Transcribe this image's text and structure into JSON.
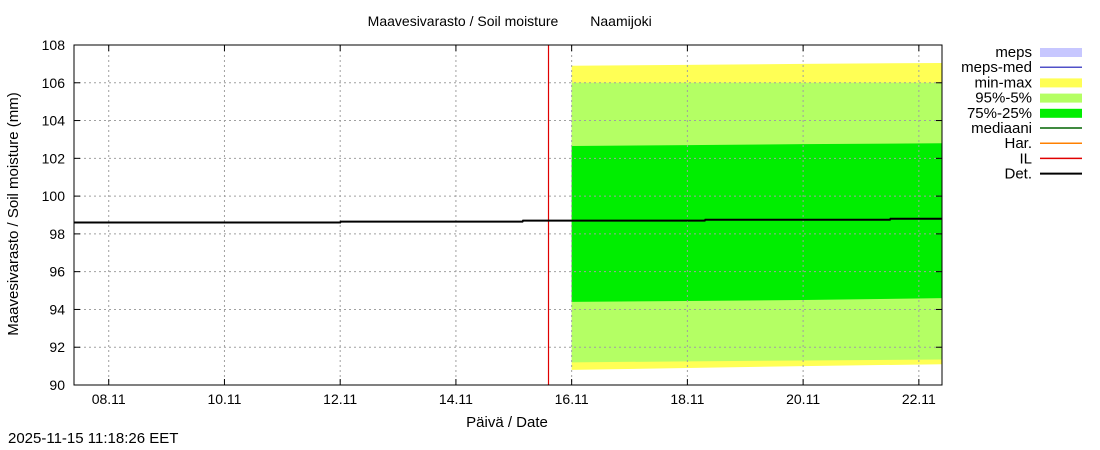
{
  "chart_data": {
    "type": "area",
    "title_left": "Maavesivarasto / Soil moisture",
    "title_right": "Naamijoki",
    "xlabel": "Päivä / Date",
    "ylabel": "Maavesivarasto / Soil moisture (mm)",
    "ylim": [
      90,
      108
    ],
    "y_ticks": [
      "90",
      "92",
      "94",
      "96",
      "98",
      "100",
      "102",
      "104",
      "106",
      "108"
    ],
    "xlim_days": [
      7.4,
      22.4
    ],
    "x_ticks": [
      {
        "label": "08.11",
        "day": 8
      },
      {
        "label": "10.11",
        "day": 10
      },
      {
        "label": "12.11",
        "day": 12
      },
      {
        "label": "14.11",
        "day": 14
      },
      {
        "label": "16.11",
        "day": 16
      },
      {
        "label": "18.11",
        "day": 18
      },
      {
        "label": "20.11",
        "day": 20
      },
      {
        "label": "22.11",
        "day": 22
      }
    ],
    "grid": true,
    "legend_position": "right",
    "legend": [
      {
        "name": "meps",
        "style": "band",
        "color": "#c7c7ff"
      },
      {
        "name": "meps-med",
        "style": "line",
        "color": "#5050c8"
      },
      {
        "name": "min-max",
        "style": "band",
        "color": "#ffff55"
      },
      {
        "name": "95%-5%",
        "style": "band",
        "color": "#b4ff64"
      },
      {
        "name": "75%-25%",
        "style": "band",
        "color": "#00ee00"
      },
      {
        "name": "mediaani",
        "style": "line",
        "color": "#006400"
      },
      {
        "name": "Har.",
        "style": "line",
        "color": "#ff8000"
      },
      {
        "name": "IL",
        "style": "line",
        "color": "#e00000"
      },
      {
        "name": "Det.",
        "style": "line",
        "color": "#000000"
      }
    ],
    "bands": [
      {
        "name": "min-max",
        "color": "#ffff55",
        "x": [
          16.0,
          18.0,
          20.0,
          22.4
        ],
        "low": [
          90.8,
          90.9,
          91.0,
          91.1
        ],
        "high": [
          106.9,
          106.95,
          107.0,
          107.05
        ]
      },
      {
        "name": "95%-5%",
        "color": "#b4ff64",
        "x": [
          16.0,
          18.0,
          20.0,
          22.4
        ],
        "low": [
          91.2,
          91.25,
          91.3,
          91.35
        ],
        "high": [
          106.0,
          106.0,
          106.0,
          106.0
        ]
      },
      {
        "name": "75%-25%",
        "color": "#00ee00",
        "x": [
          16.0,
          18.0,
          20.0,
          22.4
        ],
        "low": [
          94.4,
          94.45,
          94.5,
          94.6
        ],
        "high": [
          102.65,
          102.7,
          102.75,
          102.8
        ]
      }
    ],
    "series": [
      {
        "name": "Det.",
        "color": "#000000",
        "x": [
          7.4,
          12.0,
          12.01,
          15.15,
          15.16,
          18.3,
          18.31,
          21.5,
          21.51,
          22.4
        ],
        "y": [
          98.6,
          98.6,
          98.65,
          98.65,
          98.7,
          98.7,
          98.75,
          98.75,
          98.8,
          98.8
        ]
      }
    ],
    "vlines": [
      {
        "name": "IL",
        "color": "#e00000",
        "x": 15.6
      }
    ]
  },
  "footer": {
    "timestamp": "2025-11-15 11:18:26 EET"
  }
}
